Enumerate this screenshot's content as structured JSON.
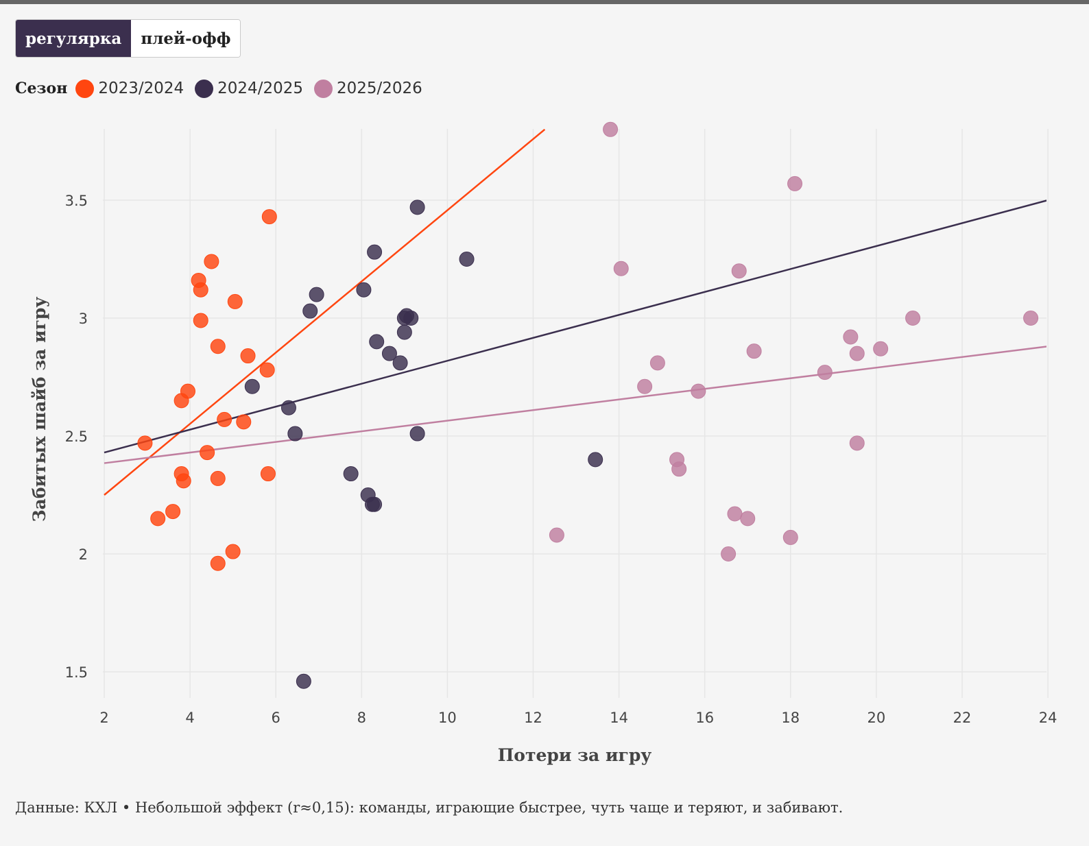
{
  "toggle": {
    "options": [
      "регулярка",
      "плей-офф"
    ],
    "active": "регулярка"
  },
  "legend": {
    "title": "Сезон",
    "items": [
      {
        "label": "2023/2024",
        "color": "#ff4610"
      },
      {
        "label": "2024/2025",
        "color": "#3b2f4e"
      },
      {
        "label": "2025/2026",
        "color": "#c07fa0"
      }
    ]
  },
  "chart_data": {
    "type": "scatter",
    "xlabel": "Потери за игру",
    "ylabel": "Забитых шайб за игру",
    "xlim": [
      2,
      24
    ],
    "ylim": [
      1.4,
      3.8
    ],
    "xticks": [
      2,
      4,
      6,
      8,
      10,
      12,
      14,
      16,
      18,
      20,
      22,
      24
    ],
    "yticks": [
      1.5,
      2,
      2.5,
      3,
      3.5
    ],
    "ytick_labels": [
      "1.5",
      "2",
      "2.5",
      "3",
      "3.5"
    ],
    "grid": true,
    "legend_position": "top-left",
    "series": [
      {
        "name": "2023/2024",
        "color": "#ff4610",
        "points": [
          [
            2.95,
            2.47
          ],
          [
            3.25,
            2.15
          ],
          [
            3.6,
            2.18
          ],
          [
            3.8,
            2.65
          ],
          [
            3.8,
            2.34
          ],
          [
            3.85,
            2.31
          ],
          [
            3.95,
            2.69
          ],
          [
            4.2,
            3.16
          ],
          [
            4.25,
            3.12
          ],
          [
            4.25,
            2.99
          ],
          [
            4.4,
            2.43
          ],
          [
            4.5,
            3.24
          ],
          [
            4.65,
            2.88
          ],
          [
            4.65,
            2.32
          ],
          [
            4.65,
            1.96
          ],
          [
            4.8,
            2.57
          ],
          [
            5.0,
            2.01
          ],
          [
            5.05,
            3.07
          ],
          [
            5.25,
            2.56
          ],
          [
            5.35,
            2.84
          ],
          [
            5.8,
            2.78
          ],
          [
            5.82,
            2.34
          ],
          [
            5.85,
            3.43
          ]
        ],
        "trend": [
          [
            2,
            2.25
          ],
          [
            12.27,
            3.8
          ]
        ]
      },
      {
        "name": "2024/2025",
        "color": "#3b2f4e",
        "points": [
          [
            5.45,
            2.71
          ],
          [
            6.3,
            2.62
          ],
          [
            6.45,
            2.51
          ],
          [
            6.65,
            1.46
          ],
          [
            6.8,
            3.03
          ],
          [
            6.95,
            3.1
          ],
          [
            7.75,
            2.34
          ],
          [
            8.05,
            3.12
          ],
          [
            8.15,
            2.25
          ],
          [
            8.25,
            2.21
          ],
          [
            8.3,
            2.21
          ],
          [
            8.3,
            3.28
          ],
          [
            8.35,
            2.9
          ],
          [
            8.65,
            2.85
          ],
          [
            8.9,
            2.81
          ],
          [
            9.0,
            2.94
          ],
          [
            9.0,
            3.0
          ],
          [
            9.05,
            3.01
          ],
          [
            9.15,
            3.0
          ],
          [
            9.3,
            2.51
          ],
          [
            9.3,
            3.47
          ],
          [
            10.45,
            3.25
          ],
          [
            13.45,
            2.4
          ]
        ],
        "trend": [
          [
            2,
            2.43
          ],
          [
            24,
            3.5
          ]
        ]
      },
      {
        "name": "2025/2026",
        "color": "#c07fa0",
        "points": [
          [
            12.55,
            2.08
          ],
          [
            13.8,
            3.8
          ],
          [
            14.05,
            3.21
          ],
          [
            14.6,
            2.71
          ],
          [
            14.9,
            2.81
          ],
          [
            15.35,
            2.4
          ],
          [
            15.4,
            2.36
          ],
          [
            15.85,
            2.69
          ],
          [
            16.55,
            2.0
          ],
          [
            16.7,
            2.17
          ],
          [
            16.8,
            3.2
          ],
          [
            17.0,
            2.15
          ],
          [
            17.15,
            2.86
          ],
          [
            18.0,
            2.07
          ],
          [
            18.1,
            3.57
          ],
          [
            18.8,
            2.77
          ],
          [
            19.4,
            2.92
          ],
          [
            19.55,
            2.47
          ],
          [
            19.55,
            2.85
          ],
          [
            20.1,
            2.87
          ],
          [
            20.85,
            3.0
          ],
          [
            23.6,
            3.0
          ]
        ],
        "trend": [
          [
            2,
            2.385
          ],
          [
            24,
            2.88
          ]
        ]
      }
    ]
  },
  "footnote": "Данные: КХЛ • Небольшой эффект (r≈0,15): команды, играющие быстрее, чуть чаще и теряют, и забивают."
}
